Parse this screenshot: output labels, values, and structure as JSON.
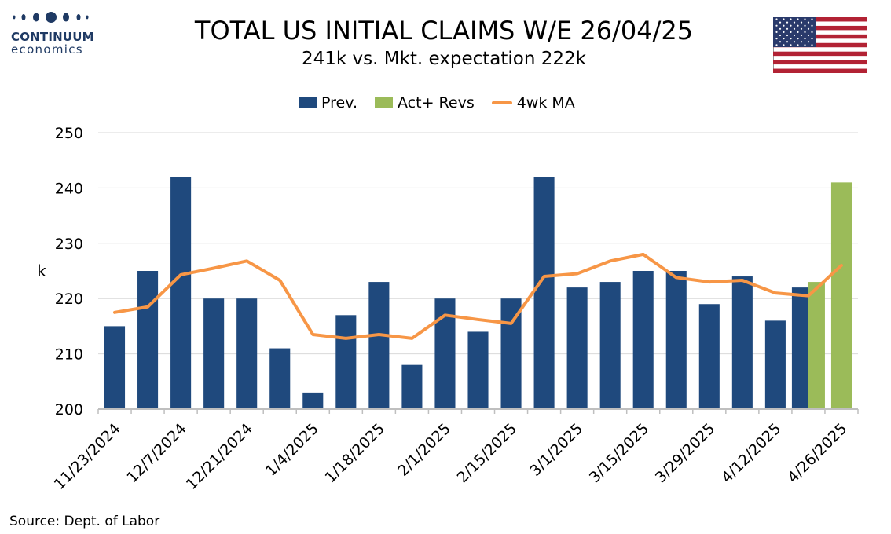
{
  "branding": {
    "name": "CONTINUUM",
    "sub": "economics",
    "accent": "#1f3a64"
  },
  "header": {
    "title": "TOTAL US INITIAL CLAIMS W/E 26/04/25",
    "subtitle": "241k vs. Mkt. expectation 222k"
  },
  "flag": {
    "icon": "us-flag-icon"
  },
  "footer": {
    "source": "Source: Dept. of Labor"
  },
  "chart_data": {
    "type": "bar",
    "ylabel": "k",
    "ylim": [
      200,
      250
    ],
    "yticks": [
      200,
      210,
      220,
      230,
      240,
      250
    ],
    "grid": true,
    "legend_position": "top-center",
    "x_tick_labels": [
      "11/23/2024",
      "12/7/2024",
      "12/21/2024",
      "1/4/2025",
      "1/18/2025",
      "2/1/2025",
      "2/15/2025",
      "3/1/2025",
      "3/15/2025",
      "3/29/2025",
      "4/12/2025",
      "4/26/2025"
    ],
    "dates": [
      "11/23/2024",
      "11/30/2024",
      "12/7/2024",
      "12/14/2024",
      "12/21/2024",
      "12/28/2024",
      "1/4/2025",
      "1/11/2025",
      "1/18/2025",
      "1/25/2025",
      "2/1/2025",
      "2/8/2025",
      "2/15/2025",
      "2/22/2025",
      "3/1/2025",
      "3/8/2025",
      "3/15/2025",
      "3/22/2025",
      "3/29/2025",
      "4/5/2025",
      "4/12/2025",
      "4/19/2025",
      "4/26/2025"
    ],
    "series": [
      {
        "name": "Prev.",
        "kind": "bar",
        "color": "#1f497d",
        "values": [
          215,
          225,
          242,
          220,
          220,
          211,
          203,
          217,
          223,
          208,
          220,
          214,
          220,
          242,
          222,
          223,
          225,
          225,
          219,
          224,
          216,
          222,
          null
        ]
      },
      {
        "name": "Act+ Revs",
        "kind": "bar",
        "color": "#9bbb59",
        "values": [
          null,
          null,
          null,
          null,
          null,
          null,
          null,
          null,
          null,
          null,
          null,
          null,
          null,
          null,
          null,
          null,
          null,
          null,
          null,
          null,
          null,
          223,
          241
        ]
      },
      {
        "name": "4wk MA",
        "kind": "line",
        "color": "#f79646",
        "values": [
          217.5,
          218.5,
          224.3,
          225.5,
          226.8,
          223.3,
          213.5,
          212.8,
          213.5,
          212.8,
          217.0,
          216.2,
          215.5,
          224.0,
          224.5,
          226.8,
          228.0,
          223.8,
          223.0,
          223.3,
          221.0,
          220.5,
          226.0
        ]
      }
    ]
  }
}
